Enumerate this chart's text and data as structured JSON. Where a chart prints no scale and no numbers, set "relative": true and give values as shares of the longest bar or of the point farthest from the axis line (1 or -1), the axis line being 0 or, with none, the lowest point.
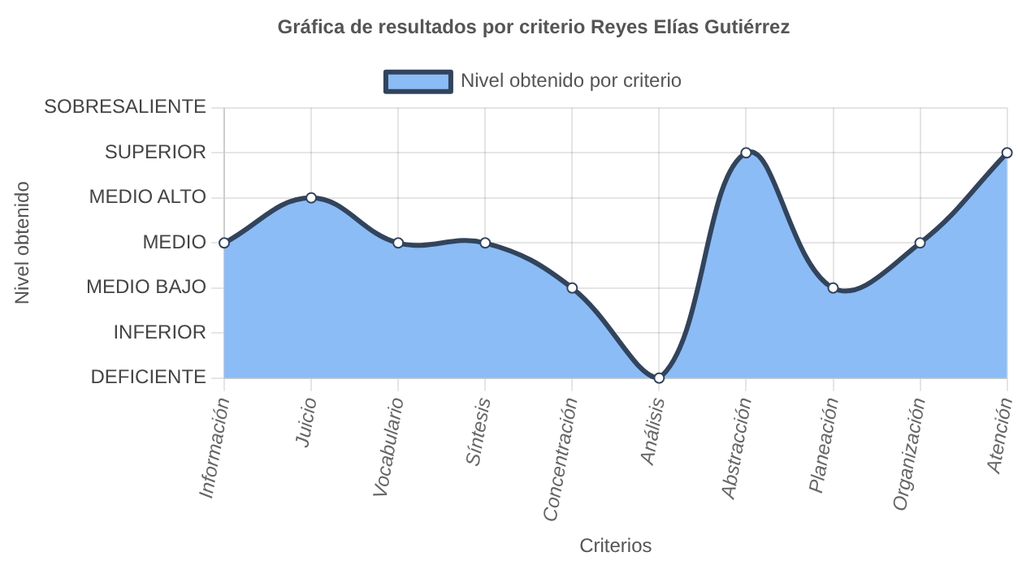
{
  "chart_data": {
    "type": "area",
    "title": "Gráfica de resultados por criterio Reyes Elías Gutiérrez",
    "xlabel": "Criterios",
    "categories": [
      "Información",
      "Juicio",
      "Vocabulario",
      "Síntesis",
      "Concentración",
      "Análisis",
      "Abstracción",
      "Planeación",
      "Organización",
      "Atención"
    ],
    "series": [
      {
        "name": "Nivel obtenido por criterio",
        "color": "#8bbcf6",
        "values": [
          0.6,
          0.8,
          0.6,
          0.6,
          0.4,
          0,
          1,
          0.4,
          0.6,
          1
        ]
      }
    ],
    "relative": true,
    "annotations": [
      "DEFICIENTE",
      "INFERIOR",
      "MEDIO BAJO",
      "MEDIO",
      "MEDIO ALTO",
      "SUPERIOR",
      "SOBRESALIENTE",
      "Nivel obtenido"
    ],
    "grid": true,
    "legend": "top",
    "marker": "circle",
    "line_style": "solid"
  }
}
